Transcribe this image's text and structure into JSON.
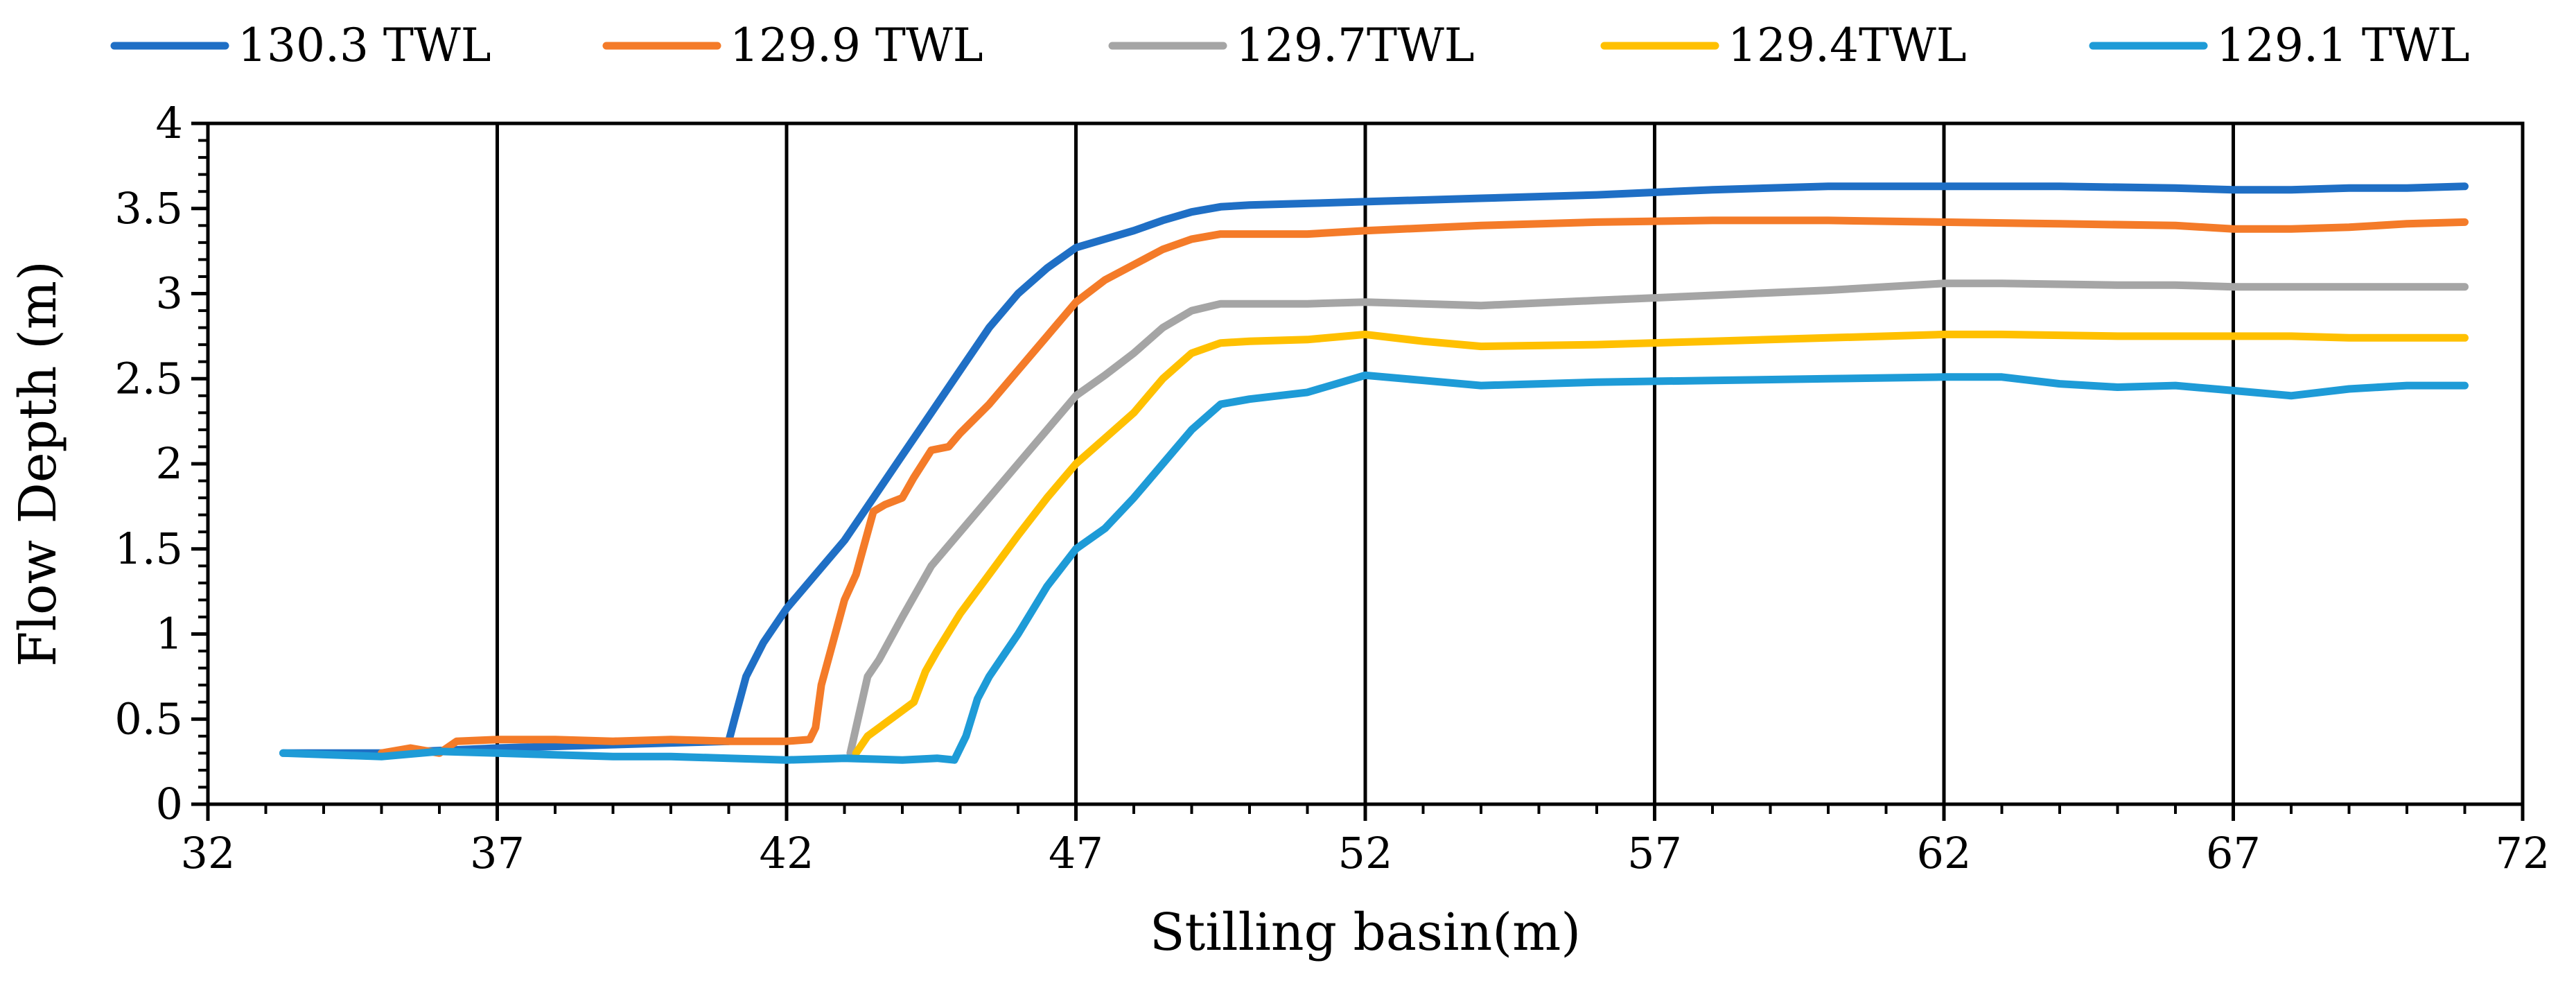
{
  "chart_data": {
    "type": "line",
    "title": "",
    "xlabel": "Stilling basin(m)",
    "ylabel": "Flow Depth (m)",
    "xlim": [
      32,
      72
    ],
    "ylim": [
      0,
      4
    ],
    "xticks": [
      32,
      37,
      42,
      47,
      52,
      57,
      62,
      67,
      72
    ],
    "yticks": [
      0,
      0.5,
      1,
      1.5,
      2,
      2.5,
      3,
      3.5,
      4
    ],
    "xtick_labels": [
      "32",
      "37",
      "42",
      "47",
      "52",
      "57",
      "62",
      "67",
      "72"
    ],
    "ytick_labels": [
      "0",
      "0.5",
      "1",
      "1.5",
      "2",
      "2.5",
      "3",
      "3.5",
      "4"
    ],
    "vertical_gridlines_at": [
      37,
      42,
      47,
      52,
      57,
      62,
      67
    ],
    "legend_position": "top",
    "series": [
      {
        "name": "130.3 TWL",
        "color": "#1F6FC5",
        "x": [
          33.3,
          35,
          37,
          39,
          40,
          41,
          41.1,
          41.3,
          41.6,
          42,
          42.5,
          43,
          43.5,
          44,
          44.5,
          45,
          45.5,
          46,
          46.5,
          47,
          47.5,
          48,
          48.5,
          49,
          49.5,
          50,
          51,
          52,
          54,
          56,
          58,
          60,
          62,
          64,
          66,
          67,
          68,
          69,
          70,
          71
        ],
        "y": [
          0.3,
          0.3,
          0.33,
          0.35,
          0.36,
          0.37,
          0.5,
          0.75,
          0.95,
          1.15,
          1.35,
          1.55,
          1.8,
          2.05,
          2.3,
          2.55,
          2.8,
          3.0,
          3.15,
          3.27,
          3.32,
          3.37,
          3.43,
          3.48,
          3.51,
          3.52,
          3.53,
          3.54,
          3.56,
          3.58,
          3.61,
          3.63,
          3.63,
          3.63,
          3.62,
          3.61,
          3.61,
          3.62,
          3.62,
          3.63
        ]
      },
      {
        "name": "129.9 TWL",
        "color": "#F47B29",
        "x": [
          35,
          35.5,
          36,
          36.3,
          37,
          38,
          39,
          40,
          41,
          42,
          42.4,
          42.5,
          42.6,
          42.8,
          43,
          43.2,
          43.5,
          43.7,
          44,
          44.2,
          44.5,
          44.8,
          45,
          45.5,
          46,
          46.5,
          47,
          47.5,
          48,
          48.5,
          49,
          49.5,
          50,
          51,
          52,
          54,
          56,
          58,
          60,
          62,
          64,
          66,
          67,
          68,
          69,
          70,
          71
        ],
        "y": [
          0.3,
          0.33,
          0.3,
          0.37,
          0.38,
          0.38,
          0.37,
          0.38,
          0.37,
          0.37,
          0.38,
          0.45,
          0.7,
          0.95,
          1.2,
          1.35,
          1.72,
          1.76,
          1.8,
          1.92,
          2.08,
          2.1,
          2.18,
          2.35,
          2.55,
          2.75,
          2.95,
          3.08,
          3.17,
          3.26,
          3.32,
          3.35,
          3.35,
          3.35,
          3.37,
          3.4,
          3.42,
          3.43,
          3.43,
          3.42,
          3.41,
          3.4,
          3.38,
          3.38,
          3.39,
          3.41,
          3.42
        ]
      },
      {
        "name": "129.7TWL",
        "color": "#A5A5A5",
        "x": [
          43.1,
          43.2,
          43.4,
          43.6,
          44,
          44.5,
          45,
          45.5,
          46,
          46.5,
          47,
          47.5,
          48,
          48.5,
          49,
          49.5,
          50,
          51,
          52,
          54,
          56,
          58,
          60,
          62,
          63,
          65,
          66,
          67,
          68,
          69,
          70,
          71
        ],
        "y": [
          0.3,
          0.45,
          0.75,
          0.85,
          1.1,
          1.4,
          1.6,
          1.8,
          2.0,
          2.2,
          2.4,
          2.52,
          2.65,
          2.8,
          2.9,
          2.94,
          2.94,
          2.94,
          2.95,
          2.93,
          2.96,
          2.99,
          3.02,
          3.06,
          3.06,
          3.05,
          3.05,
          3.04,
          3.04,
          3.04,
          3.04,
          3.04
        ]
      },
      {
        "name": "129.4TWL",
        "color": "#FFC000",
        "x": [
          43.2,
          43.4,
          44,
          44.2,
          44.4,
          44.6,
          45,
          45.5,
          46,
          46.5,
          47,
          47.5,
          48,
          48.5,
          49,
          49.5,
          50,
          51,
          52,
          53,
          54,
          56,
          58,
          60,
          62,
          63,
          65,
          66,
          67,
          68,
          69,
          70,
          71
        ],
        "y": [
          0.3,
          0.4,
          0.55,
          0.6,
          0.78,
          0.9,
          1.12,
          1.35,
          1.58,
          1.8,
          2.0,
          2.15,
          2.3,
          2.5,
          2.65,
          2.71,
          2.72,
          2.73,
          2.76,
          2.72,
          2.69,
          2.7,
          2.72,
          2.74,
          2.76,
          2.76,
          2.75,
          2.75,
          2.75,
          2.75,
          2.74,
          2.74,
          2.74
        ]
      },
      {
        "name": "129.1 TWL",
        "color": "#1E9BD7",
        "x": [
          33.3,
          35,
          36,
          37,
          38,
          39,
          40,
          41,
          42,
          43,
          44,
          44.6,
          44.9,
          45.1,
          45.3,
          45.5,
          45.8,
          46,
          46.5,
          47,
          47.5,
          48,
          48.5,
          49,
          49.5,
          50,
          51,
          52,
          53,
          54,
          56,
          58,
          60,
          62,
          63,
          64,
          65,
          66,
          67,
          68,
          69,
          70,
          71
        ],
        "y": [
          0.3,
          0.28,
          0.31,
          0.3,
          0.29,
          0.28,
          0.28,
          0.27,
          0.26,
          0.27,
          0.26,
          0.27,
          0.26,
          0.4,
          0.62,
          0.75,
          0.9,
          1.0,
          1.28,
          1.5,
          1.62,
          1.8,
          2.0,
          2.2,
          2.35,
          2.38,
          2.42,
          2.52,
          2.49,
          2.46,
          2.48,
          2.49,
          2.5,
          2.51,
          2.51,
          2.47,
          2.45,
          2.46,
          2.43,
          2.4,
          2.44,
          2.46,
          2.46
        ]
      }
    ]
  }
}
